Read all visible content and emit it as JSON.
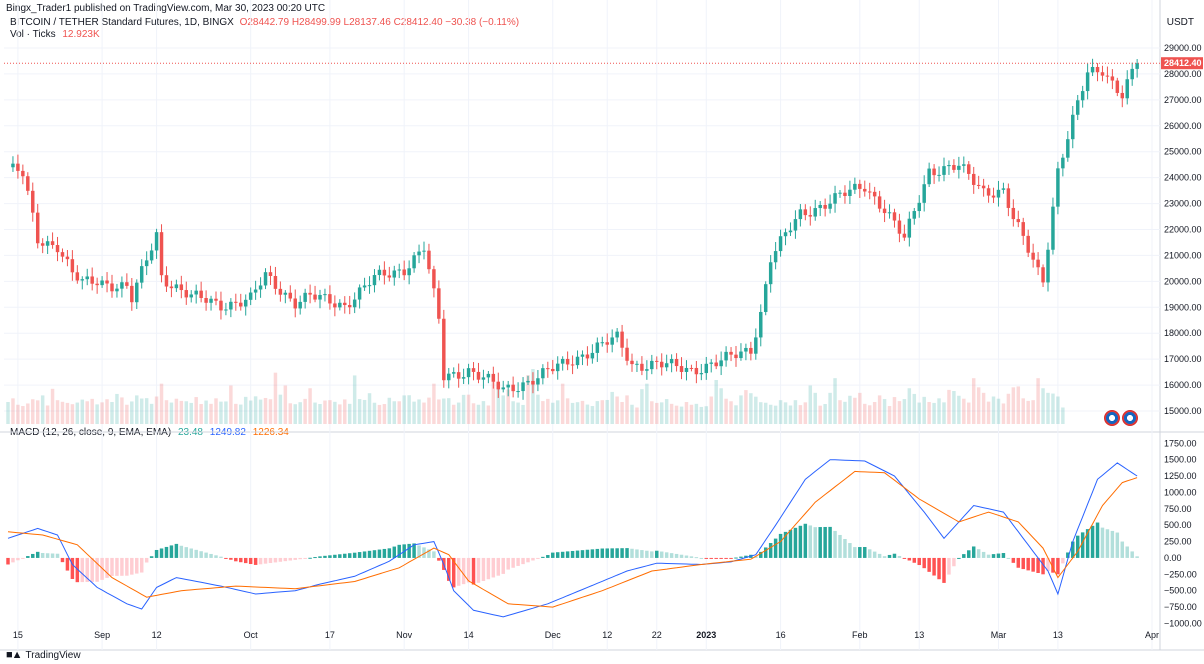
{
  "header": {
    "published": "Bingx_Trader1 published on TradingView.com, Mar 30, 2023 00:20 UTC",
    "symbol": "BITCOIN / TETHER Standard Futures, 1D, BINGX",
    "ohlc": "O28442.79  H28499.99  L28137.46  C28412.40  −30.38 (−0.11%)",
    "vol_label": "Vol · Ticks",
    "vol_value": "12.923K",
    "currency": "USDT"
  },
  "macd_legend": {
    "label": "MACD (12, 26, close, 9, EMA, EMA)",
    "hist": "23.48",
    "macd": "1249.82",
    "signal": "1226.34"
  },
  "footer": {
    "brand": "TradingView"
  },
  "colors": {
    "up": "#26a69a",
    "down": "#ef5350",
    "macd_line": "#2962ff",
    "signal_line": "#ff6d00",
    "hist_up_strong": "#26a69a",
    "hist_up_weak": "#b2dfdb",
    "hist_down_strong": "#ff5252",
    "hist_down_weak": "#ffcdd2"
  },
  "chart_data": [
    {
      "type": "candlestick",
      "y_ticks": [
        "29000.00",
        "28000.00",
        "27000.00",
        "26000.00",
        "25000.00",
        "24000.00",
        "23000.00",
        "22000.00",
        "21000.00",
        "20000.00",
        "19000.00",
        "18000.00",
        "17000.00",
        "16000.00",
        "15000.00"
      ],
      "ylim": [
        14500,
        29500
      ],
      "last_price_label": "28412.40",
      "x_ticks": [
        "15",
        "Sep",
        "12",
        "Oct",
        "17",
        "Nov",
        "14",
        "Dec",
        "12",
        "22",
        "2023",
        "16",
        "Feb",
        "13",
        "Mar",
        "13",
        "Apr"
      ],
      "close_series": [
        {
          "date": "Aug 13",
          "close": 24400
        },
        {
          "date": "Aug 16",
          "close": 24100
        },
        {
          "date": "Aug 17",
          "close": 23300
        },
        {
          "date": "Aug 19",
          "close": 21600
        },
        {
          "date": "Aug 23",
          "close": 21400
        },
        {
          "date": "Aug 26",
          "close": 20300
        },
        {
          "date": "Aug 28",
          "close": 19900
        },
        {
          "date": "Aug 31",
          "close": 20000
        },
        {
          "date": "Sep 6",
          "close": 19800
        },
        {
          "date": "Sep 7",
          "close": 19300
        },
        {
          "date": "Sep 12",
          "close": 21800
        },
        {
          "date": "Sep 13",
          "close": 20200
        },
        {
          "date": "Sep 19",
          "close": 19400
        },
        {
          "date": "Sep 25",
          "close": 19100
        },
        {
          "date": "Oct 1",
          "close": 19300
        },
        {
          "date": "Oct 4",
          "close": 20200
        },
        {
          "date": "Oct 10",
          "close": 19200
        },
        {
          "date": "Oct 13",
          "close": 19400
        },
        {
          "date": "Oct 20",
          "close": 19100
        },
        {
          "date": "Oct 26",
          "close": 20100
        },
        {
          "date": "Nov 1",
          "close": 20500
        },
        {
          "date": "Nov 5",
          "close": 21300
        },
        {
          "date": "Nov 8",
          "close": 18500
        },
        {
          "date": "Nov 9",
          "close": 16300
        },
        {
          "date": "Nov 14",
          "close": 16600
        },
        {
          "date": "Nov 21",
          "close": 15800
        },
        {
          "date": "Nov 28",
          "close": 16300
        },
        {
          "date": "Dec 5",
          "close": 17000
        },
        {
          "date": "Dec 14",
          "close": 17800
        },
        {
          "date": "Dec 17",
          "close": 16800
        },
        {
          "date": "Dec 22",
          "close": 16800
        },
        {
          "date": "Dec 29",
          "close": 16600
        },
        {
          "date": "Jan 4",
          "close": 16900
        },
        {
          "date": "Jan 10",
          "close": 17400
        },
        {
          "date": "Jan 12",
          "close": 18800
        },
        {
          "date": "Jan 14",
          "close": 20900
        },
        {
          "date": "Jan 20",
          "close": 22600
        },
        {
          "date": "Jan 25",
          "close": 23000
        },
        {
          "date": "Feb 2",
          "close": 23700
        },
        {
          "date": "Feb 6",
          "close": 22800
        },
        {
          "date": "Feb 10",
          "close": 21600
        },
        {
          "date": "Feb 15",
          "close": 24300
        },
        {
          "date": "Feb 21",
          "close": 24400
        },
        {
          "date": "Feb 26",
          "close": 23500
        },
        {
          "date": "Mar 2",
          "close": 23500
        },
        {
          "date": "Mar 4",
          "close": 22400
        },
        {
          "date": "Mar 9",
          "close": 20400
        },
        {
          "date": "Mar 10",
          "close": 20100
        },
        {
          "date": "Mar 13",
          "close": 24300
        },
        {
          "date": "Mar 17",
          "close": 26800
        },
        {
          "date": "Mar 19",
          "close": 28000
        },
        {
          "date": "Mar 22",
          "close": 28200
        },
        {
          "date": "Mar 26",
          "close": 27200
        },
        {
          "date": "Mar 29",
          "close": 28412
        }
      ]
    },
    {
      "type": "histogram",
      "name": "Vol · Ticks",
      "values": [
        1200,
        1400,
        1050,
        980,
        1120,
        1350,
        1290,
        1560,
        1010,
        1920,
        1300,
        1210,
        1150,
        1080,
        1170,
        1330,
        1240,
        1370,
        1070,
        1180,
        1350,
        1200,
        1640,
        1450,
        1050,
        1230,
        1560,
        1390,
        1410,
        1100,
        1500,
        2200,
        1300,
        1170,
        1380,
        1260,
        1240,
        1150,
        1470,
        1090,
        1280,
        1100,
        1400,
        1220,
        1230,
        2100,
        1100,
        1060,
        1480,
        1280,
        1510,
        1330,
        1420,
        1350,
        2800,
        1600,
        2100,
        1130,
        1080,
        1190,
        1370,
        1950,
        1170,
        1090,
        1280,
        1300,
        1210,
        1070,
        1340,
        1100,
        2650,
        1360,
        1310,
        1680,
        1160,
        1040,
        1090,
        1430,
        1240,
        1240,
        1560,
        1570,
        1220,
        1340,
        1170,
        1440,
        2200,
        1340,
        1390,
        1410,
        1050,
        1170,
        1590,
        1600,
        1130,
        1050,
        1250,
        1010,
        2700,
        2200,
        1560,
        1880,
        1240,
        1170,
        1040,
        2660,
        3000,
        1600,
        1250,
        1370,
        1160,
        1290,
        2200,
        1400,
        1150,
        1190,
        1260,
        1060,
        980,
        1250,
        1300,
        1310,
        1750,
        1500,
        1200,
        1560,
        1050,
        900,
        1900,
        2200,
        1240,
        1150,
        1180,
        1360,
        1100,
        1000,
        950,
        1200,
        1050,
        1100,
        930,
        970,
        1500,
        2400,
        1950,
        1380,
        1240,
        1020,
        1560,
        1850,
        1680,
        1490,
        1190,
        1160,
        1050,
        1000,
        1300,
        1180,
        1010,
        1300,
        1030,
        1180,
        2100,
        1700,
        1000,
        1090,
        1700,
        2500,
        1300,
        1210,
        1540,
        1430,
        1700,
        1100,
        1020,
        1200,
        1560,
        1360,
        980,
        1470,
        1250,
        1360,
        1950,
        1640,
        1170,
        1480,
        1200,
        1150,
        1400,
        1180,
        1860,
        1800,
        1540,
        1380,
        1170,
        2500,
        2000,
        1700,
        1220,
        1500,
        1380,
        1120,
        1650,
        2000,
        2050,
        1400,
        1260,
        1300,
        2500,
        1950,
        1700,
        1660,
        1500,
        900
      ]
    },
    {
      "type": "line",
      "name": "MACD (12, 26, close, 9, EMA, EMA)",
      "y_ticks": [
        "1750.00",
        "1500.00",
        "1250.00",
        "1000.00",
        "750.00",
        "500.00",
        "250.00",
        "0.00",
        "−250.00",
        "−500.00",
        "−750.00",
        "−1000.00"
      ],
      "ylim": [
        -1100,
        1800
      ],
      "macd_series": [
        {
          "date": "Aug 13",
          "value": 300
        },
        {
          "date": "Aug 19",
          "value": 450
        },
        {
          "date": "Aug 23",
          "value": 350
        },
        {
          "date": "Aug 26",
          "value": -100
        },
        {
          "date": "Aug 31",
          "value": -450
        },
        {
          "date": "Sep 6",
          "value": -700
        },
        {
          "date": "Sep 9",
          "value": -780
        },
        {
          "date": "Sep 12",
          "value": -450
        },
        {
          "date": "Sep 16",
          "value": -300
        },
        {
          "date": "Sep 25",
          "value": -430
        },
        {
          "date": "Oct 2",
          "value": -550
        },
        {
          "date": "Oct 10",
          "value": -500
        },
        {
          "date": "Oct 15",
          "value": -400
        },
        {
          "date": "Oct 22",
          "value": -280
        },
        {
          "date": "Oct 29",
          "value": -50
        },
        {
          "date": "Nov 3",
          "value": 200
        },
        {
          "date": "Nov 7",
          "value": 250
        },
        {
          "date": "Nov 9",
          "value": -100
        },
        {
          "date": "Nov 11",
          "value": -500
        },
        {
          "date": "Nov 15",
          "value": -800
        },
        {
          "date": "Nov 21",
          "value": -900
        },
        {
          "date": "Nov 30",
          "value": -700
        },
        {
          "date": "Dec 8",
          "value": -450
        },
        {
          "date": "Dec 16",
          "value": -200
        },
        {
          "date": "Dec 22",
          "value": -80
        },
        {
          "date": "Dec 31",
          "value": -100
        },
        {
          "date": "Jan 6",
          "value": -60
        },
        {
          "date": "Jan 11",
          "value": 50
        },
        {
          "date": "Jan 15",
          "value": 500
        },
        {
          "date": "Jan 21",
          "value": 1200
        },
        {
          "date": "Jan 26",
          "value": 1500
        },
        {
          "date": "Feb 2",
          "value": 1480
        },
        {
          "date": "Feb 8",
          "value": 1250
        },
        {
          "date": "Feb 14",
          "value": 700
        },
        {
          "date": "Feb 18",
          "value": 300
        },
        {
          "date": "Feb 24",
          "value": 800
        },
        {
          "date": "Mar 2",
          "value": 700
        },
        {
          "date": "Mar 7",
          "value": 200
        },
        {
          "date": "Mar 11",
          "value": -200
        },
        {
          "date": "Mar 13",
          "value": -550
        },
        {
          "date": "Mar 16",
          "value": 250
        },
        {
          "date": "Mar 21",
          "value": 1200
        },
        {
          "date": "Mar 25",
          "value": 1450
        },
        {
          "date": "Mar 29",
          "value": 1250
        }
      ],
      "signal_series": [
        {
          "date": "Aug 13",
          "value": 400
        },
        {
          "date": "Aug 20",
          "value": 350
        },
        {
          "date": "Aug 27",
          "value": 200
        },
        {
          "date": "Sep 3",
          "value": -300
        },
        {
          "date": "Sep 10",
          "value": -600
        },
        {
          "date": "Sep 17",
          "value": -500
        },
        {
          "date": "Sep 28",
          "value": -430
        },
        {
          "date": "Oct 10",
          "value": -470
        },
        {
          "date": "Oct 22",
          "value": -360
        },
        {
          "date": "Oct 31",
          "value": -150
        },
        {
          "date": "Nov 7",
          "value": 150
        },
        {
          "date": "Nov 10",
          "value": 50
        },
        {
          "date": "Nov 14",
          "value": -350
        },
        {
          "date": "Nov 22",
          "value": -700
        },
        {
          "date": "Dec 1",
          "value": -750
        },
        {
          "date": "Dec 11",
          "value": -500
        },
        {
          "date": "Dec 21",
          "value": -200
        },
        {
          "date": "Dec 31",
          "value": -100
        },
        {
          "date": "Jan 10",
          "value": -20
        },
        {
          "date": "Jan 16",
          "value": 250
        },
        {
          "date": "Jan 23",
          "value": 850
        },
        {
          "date": "Jan 31",
          "value": 1320
        },
        {
          "date": "Feb 6",
          "value": 1300
        },
        {
          "date": "Feb 13",
          "value": 900
        },
        {
          "date": "Feb 21",
          "value": 550
        },
        {
          "date": "Feb 27",
          "value": 700
        },
        {
          "date": "Mar 5",
          "value": 550
        },
        {
          "date": "Mar 10",
          "value": 150
        },
        {
          "date": "Mar 13",
          "value": -300
        },
        {
          "date": "Mar 17",
          "value": 100
        },
        {
          "date": "Mar 22",
          "value": 800
        },
        {
          "date": "Mar 26",
          "value": 1150
        },
        {
          "date": "Mar 29",
          "value": 1226
        }
      ]
    }
  ]
}
